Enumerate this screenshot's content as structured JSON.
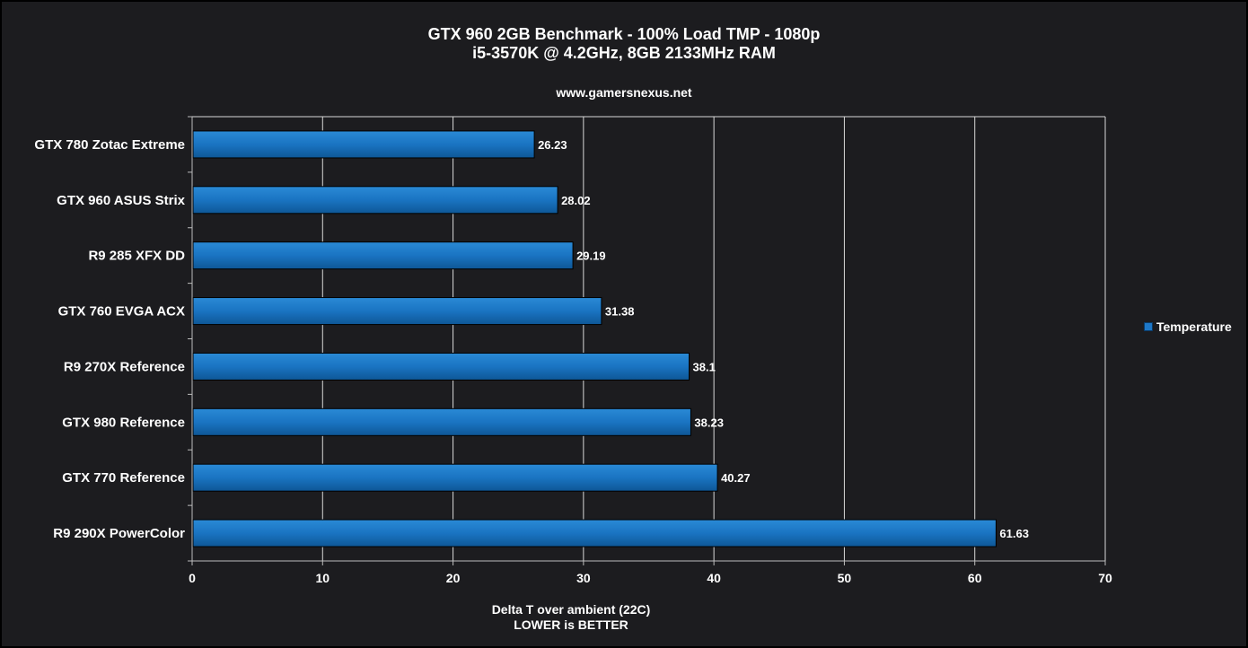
{
  "chart_data": {
    "type": "bar",
    "orientation": "horizontal",
    "title": "GTX 960 2GB Benchmark - 100% Load TMP - 1080p",
    "subtitle": "i5-3570K @ 4.2GHz, 8GB 2133MHz RAM",
    "source": "www.gamersnexus.net",
    "xlabel": "Delta T over ambient (22C)",
    "xlabel_note": "LOWER is BETTER",
    "ylabel": "",
    "categories": [
      "GTX 780 Zotac Extreme",
      "GTX 960 ASUS Strix",
      "R9 285 XFX DD",
      "GTX 760 EVGA ACX",
      "R9 270X Reference",
      "GTX 980 Reference",
      "GTX 770 Reference",
      "R9 290X PowerColor"
    ],
    "series": [
      {
        "name": "Temperature",
        "values": [
          26.23,
          28.02,
          29.19,
          31.38,
          38.1,
          38.23,
          40.27,
          61.63
        ],
        "labels": [
          "26.23",
          "28.02",
          "29.19",
          "31.38",
          "38.1",
          "38.23",
          "40.27",
          "61.63"
        ],
        "color": "#1e78c8"
      }
    ],
    "xlim": [
      0,
      70
    ],
    "xticks": [
      "0",
      "10",
      "20",
      "30",
      "40",
      "50",
      "60",
      "70"
    ],
    "grid": true,
    "legend_position": "right"
  }
}
